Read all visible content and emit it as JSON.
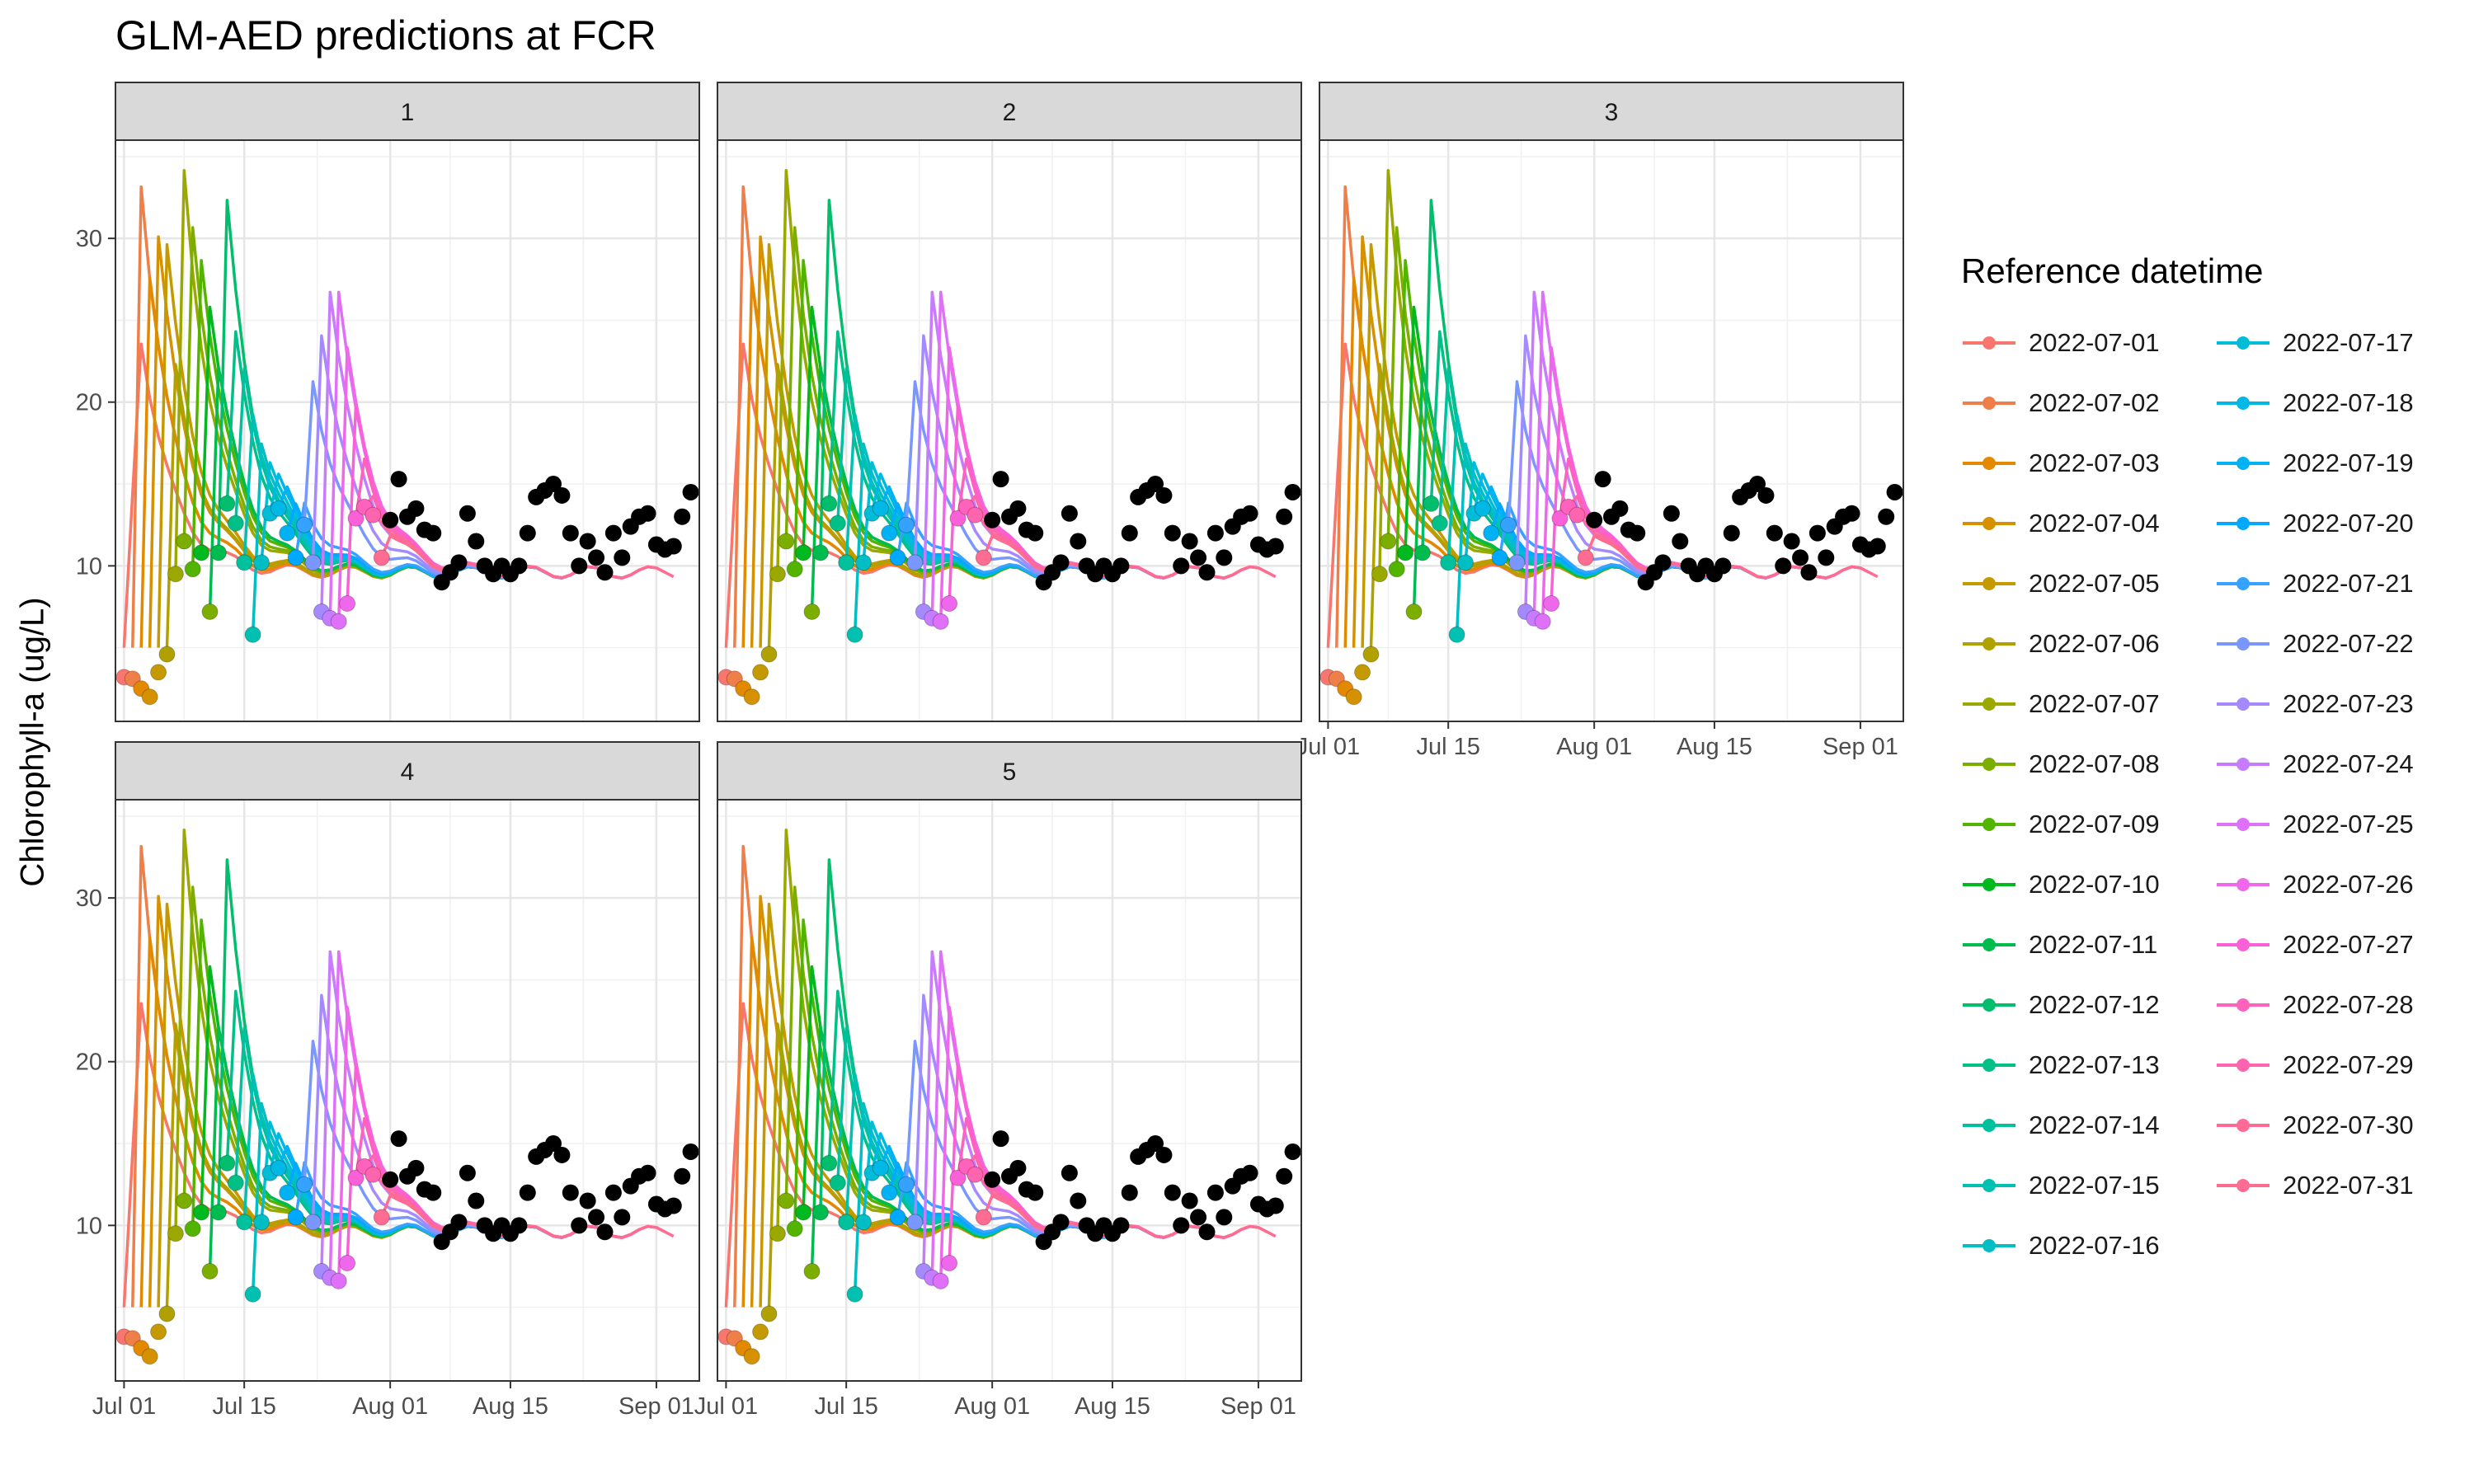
{
  "title": "GLM-AED predictions at FCR",
  "ylabel": "Chlorophyll-a (ug/L)",
  "legend": {
    "title": "Reference datetime",
    "position": "right",
    "items": [
      {
        "label": "2022-07-01",
        "color": "#F8766D"
      },
      {
        "label": "2022-07-02",
        "color": "#EF7F49"
      },
      {
        "label": "2022-07-03",
        "color": "#E38900"
      },
      {
        "label": "2022-07-04",
        "color": "#D59100"
      },
      {
        "label": "2022-07-05",
        "color": "#C49A00"
      },
      {
        "label": "2022-07-06",
        "color": "#B1A100"
      },
      {
        "label": "2022-07-07",
        "color": "#9AA800"
      },
      {
        "label": "2022-07-08",
        "color": "#7CAE00"
      },
      {
        "label": "2022-07-09",
        "color": "#53B400"
      },
      {
        "label": "2022-07-10",
        "color": "#00B81F"
      },
      {
        "label": "2022-07-11",
        "color": "#00BB4E"
      },
      {
        "label": "2022-07-12",
        "color": "#00BE6C"
      },
      {
        "label": "2022-07-13",
        "color": "#00C087"
      },
      {
        "label": "2022-07-14",
        "color": "#00C09E"
      },
      {
        "label": "2022-07-15",
        "color": "#00C0B2"
      },
      {
        "label": "2022-07-16",
        "color": "#00BEC4"
      },
      {
        "label": "2022-07-17",
        "color": "#00BCD6"
      },
      {
        "label": "2022-07-18",
        "color": "#00B8E5"
      },
      {
        "label": "2022-07-19",
        "color": "#00B1F3"
      },
      {
        "label": "2022-07-20",
        "color": "#00A9FF"
      },
      {
        "label": "2022-07-21",
        "color": "#35A2FF"
      },
      {
        "label": "2022-07-22",
        "color": "#7997FF"
      },
      {
        "label": "2022-07-23",
        "color": "#A58AFF"
      },
      {
        "label": "2022-07-24",
        "color": "#C77CFF"
      },
      {
        "label": "2022-07-25",
        "color": "#DF70F8"
      },
      {
        "label": "2022-07-26",
        "color": "#EF67EB"
      },
      {
        "label": "2022-07-27",
        "color": "#FB61D7"
      },
      {
        "label": "2022-07-28",
        "color": "#FF62BC"
      },
      {
        "label": "2022-07-29",
        "color": "#FF65AE"
      },
      {
        "label": "2022-07-30",
        "color": "#FF6B96"
      },
      {
        "label": "2022-07-31",
        "color": "#FF6C91"
      }
    ]
  },
  "chart_data": {
    "type": "line",
    "facets": [
      "1",
      "2",
      "3",
      "4",
      "5"
    ],
    "xlim": [
      "2022-06-30",
      "2022-09-06"
    ],
    "x_ticks": [
      {
        "date": "2022-07-01",
        "label": "Jul 01"
      },
      {
        "date": "2022-07-15",
        "label": "Jul 15"
      },
      {
        "date": "2022-08-01",
        "label": "Aug 01"
      },
      {
        "date": "2022-08-15",
        "label": "Aug 15"
      },
      {
        "date": "2022-09-01",
        "label": "Sep 01"
      }
    ],
    "ylim": [
      0.5,
      36
    ],
    "y_ticks": [
      10,
      20,
      30
    ],
    "grid": true,
    "forecast_horizon_days": 34,
    "forecast_series": [
      {
        "name": "2022-07-01",
        "peak": 23.9,
        "peak_day": 2
      },
      {
        "name": "2022-07-02",
        "peak": 33.5,
        "peak_day": 1
      },
      {
        "name": "2022-07-03",
        "peak": 27.8,
        "peak_day": 1
      },
      {
        "name": "2022-07-04",
        "peak": 30.0,
        "peak_day": 1
      },
      {
        "name": "2022-07-05",
        "peak": 29.3,
        "peak_day": 1
      },
      {
        "name": "2022-07-06",
        "peak": 22.0,
        "peak_day": 1
      },
      {
        "name": "2022-07-07",
        "peak": 34.1,
        "peak_day": 1
      },
      {
        "name": "2022-07-08",
        "peak": 30.9,
        "peak_day": 1
      },
      {
        "name": "2022-07-09",
        "peak": 29.0,
        "peak_day": 1
      },
      {
        "name": "2022-07-10",
        "peak": 26.0,
        "peak_day": 1
      },
      {
        "name": "2022-07-11",
        "peak": 22.0,
        "peak_day": 1
      },
      {
        "name": "2022-07-12",
        "peak": 32.0,
        "peak_day": 1
      },
      {
        "name": "2022-07-13",
        "peak": 24.0,
        "peak_day": 1
      },
      {
        "name": "2022-07-14",
        "peak": 22.0,
        "peak_day": 1
      },
      {
        "name": "2022-07-15",
        "peak": 19.5,
        "peak_day": 1
      },
      {
        "name": "2022-07-16",
        "peak": 17.8,
        "peak_day": 1
      },
      {
        "name": "2022-07-17",
        "peak": 16.5,
        "peak_day": 1
      },
      {
        "name": "2022-07-18",
        "peak": 15.5,
        "peak_day": 1
      },
      {
        "name": "2022-07-19",
        "peak": 14.5,
        "peak_day": 1
      },
      {
        "name": "2022-07-20",
        "peak": 13.5,
        "peak_day": 1
      },
      {
        "name": "2022-07-21",
        "peak": 13.8,
        "peak_day": 1
      },
      {
        "name": "2022-07-22",
        "peak": 21.5,
        "peak_day": 1
      },
      {
        "name": "2022-07-23",
        "peak": 24.4,
        "peak_day": 1
      },
      {
        "name": "2022-07-24",
        "peak": 26.9,
        "peak_day": 1
      },
      {
        "name": "2022-07-25",
        "peak": 26.6,
        "peak_day": 1
      },
      {
        "name": "2022-07-26",
        "peak": 23.0,
        "peak_day": 1
      },
      {
        "name": "2022-07-27",
        "peak": 19.5,
        "peak_day": 1
      },
      {
        "name": "2022-07-28",
        "peak": 16.5,
        "peak_day": 1
      },
      {
        "name": "2022-07-29",
        "peak": 14.5,
        "peak_day": 1
      },
      {
        "name": "2022-07-30",
        "peak": 13.0,
        "peak_day": 1
      },
      {
        "name": "2022-07-31",
        "peak": 12.0,
        "peak_day": 1
      }
    ],
    "early_points": [
      {
        "date": "2022-07-01",
        "y": 3.2,
        "series": "2022-07-01"
      },
      {
        "date": "2022-07-02",
        "y": 3.1,
        "series": "2022-07-02"
      },
      {
        "date": "2022-07-03",
        "y": 2.5,
        "series": "2022-07-03"
      },
      {
        "date": "2022-07-04",
        "y": 2.0,
        "series": "2022-07-04"
      },
      {
        "date": "2022-07-05",
        "y": 3.5,
        "series": "2022-07-05"
      },
      {
        "date": "2022-07-06",
        "y": 4.6,
        "series": "2022-07-06"
      },
      {
        "date": "2022-07-07",
        "y": 9.5,
        "series": "2022-07-07"
      },
      {
        "date": "2022-07-08",
        "y": 11.5,
        "series": "2022-07-08"
      },
      {
        "date": "2022-07-09",
        "y": 9.8,
        "series": "2022-07-09"
      },
      {
        "date": "2022-07-10",
        "y": 10.8,
        "series": "2022-07-10"
      },
      {
        "date": "2022-07-11",
        "y": 7.2,
        "series": "2022-07-08"
      },
      {
        "date": "2022-07-12",
        "y": 10.8,
        "series": "2022-07-11"
      },
      {
        "date": "2022-07-13",
        "y": 13.8,
        "series": "2022-07-12"
      },
      {
        "date": "2022-07-14",
        "y": 12.6,
        "series": "2022-07-13"
      },
      {
        "date": "2022-07-15",
        "y": 10.2,
        "series": "2022-07-14"
      },
      {
        "date": "2022-07-16",
        "y": 5.8,
        "series": "2022-07-15"
      },
      {
        "date": "2022-07-17",
        "y": 10.2,
        "series": "2022-07-16"
      },
      {
        "date": "2022-07-18",
        "y": 13.2,
        "series": "2022-07-17"
      },
      {
        "date": "2022-07-19",
        "y": 13.5,
        "series": "2022-07-18"
      },
      {
        "date": "2022-07-20",
        "y": 12.0,
        "series": "2022-07-19"
      },
      {
        "date": "2022-07-21",
        "y": 10.5,
        "series": "2022-07-20"
      },
      {
        "date": "2022-07-22",
        "y": 12.5,
        "series": "2022-07-21"
      },
      {
        "date": "2022-07-23",
        "y": 10.2,
        "series": "2022-07-22"
      },
      {
        "date": "2022-07-24",
        "y": 7.2,
        "series": "2022-07-23"
      },
      {
        "date": "2022-07-25",
        "y": 6.8,
        "series": "2022-07-24"
      },
      {
        "date": "2022-07-26",
        "y": 6.6,
        "series": "2022-07-25"
      },
      {
        "date": "2022-07-27",
        "y": 7.7,
        "series": "2022-07-26"
      },
      {
        "date": "2022-07-28",
        "y": 12.9,
        "series": "2022-07-27"
      },
      {
        "date": "2022-07-29",
        "y": 13.6,
        "series": "2022-07-28"
      },
      {
        "date": "2022-07-30",
        "y": 13.1,
        "series": "2022-07-29"
      },
      {
        "date": "2022-07-31",
        "y": 10.5,
        "series": "2022-07-31"
      }
    ],
    "observations": [
      {
        "date": "2022-08-01",
        "y": 12.8
      },
      {
        "date": "2022-08-02",
        "y": 15.3
      },
      {
        "date": "2022-08-03",
        "y": 13.0
      },
      {
        "date": "2022-08-04",
        "y": 13.5
      },
      {
        "date": "2022-08-05",
        "y": 12.2
      },
      {
        "date": "2022-08-06",
        "y": 12.0
      },
      {
        "date": "2022-08-07",
        "y": 9.0
      },
      {
        "date": "2022-08-08",
        "y": 9.6
      },
      {
        "date": "2022-08-09",
        "y": 10.2
      },
      {
        "date": "2022-08-10",
        "y": 13.2
      },
      {
        "date": "2022-08-11",
        "y": 11.5
      },
      {
        "date": "2022-08-12",
        "y": 10.0
      },
      {
        "date": "2022-08-13",
        "y": 9.5
      },
      {
        "date": "2022-08-14",
        "y": 10.0
      },
      {
        "date": "2022-08-15",
        "y": 9.5
      },
      {
        "date": "2022-08-16",
        "y": 10.0
      },
      {
        "date": "2022-08-17",
        "y": 12.0
      },
      {
        "date": "2022-08-18",
        "y": 14.2
      },
      {
        "date": "2022-08-19",
        "y": 14.6
      },
      {
        "date": "2022-08-20",
        "y": 15.0
      },
      {
        "date": "2022-08-21",
        "y": 14.3
      },
      {
        "date": "2022-08-22",
        "y": 12.0
      },
      {
        "date": "2022-08-23",
        "y": 10.0
      },
      {
        "date": "2022-08-24",
        "y": 11.5
      },
      {
        "date": "2022-08-25",
        "y": 10.5
      },
      {
        "date": "2022-08-26",
        "y": 9.6
      },
      {
        "date": "2022-08-27",
        "y": 12.0
      },
      {
        "date": "2022-08-28",
        "y": 10.5
      },
      {
        "date": "2022-08-29",
        "y": 12.4
      },
      {
        "date": "2022-08-30",
        "y": 13.0
      },
      {
        "date": "2022-08-31",
        "y": 13.2
      },
      {
        "date": "2022-09-01",
        "y": 11.3
      },
      {
        "date": "2022-09-02",
        "y": 11.0
      },
      {
        "date": "2022-09-03",
        "y": 11.2
      },
      {
        "date": "2022-09-04",
        "y": 13.0
      },
      {
        "date": "2022-09-05",
        "y": 14.5
      }
    ]
  }
}
